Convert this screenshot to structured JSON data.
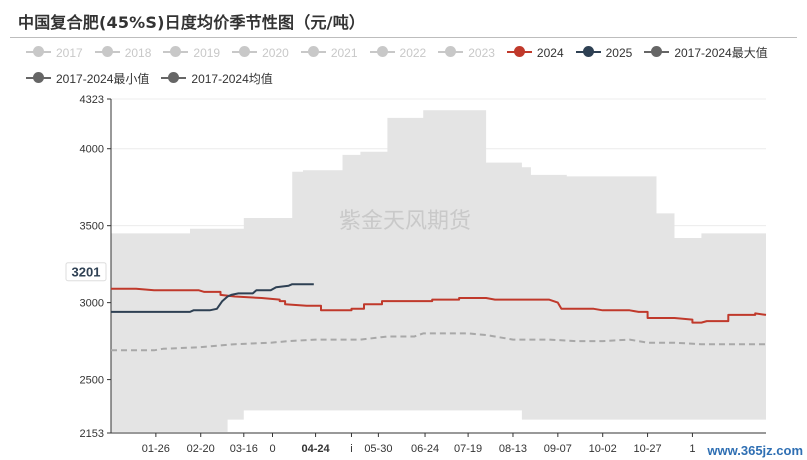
{
  "title": "中国复合肥(45%S)日度均价季节性图（元/吨）",
  "watermark": "紫金天风期货",
  "corner_text": "www.365jz.com",
  "legend": [
    {
      "label": "2017",
      "color": "#c8c8c8",
      "active": false
    },
    {
      "label": "2018",
      "color": "#c8c8c8",
      "active": false
    },
    {
      "label": "2019",
      "color": "#c8c8c8",
      "active": false
    },
    {
      "label": "2020",
      "color": "#c8c8c8",
      "active": false
    },
    {
      "label": "2021",
      "color": "#c8c8c8",
      "active": false
    },
    {
      "label": "2022",
      "color": "#c8c8c8",
      "active": false
    },
    {
      "label": "2023",
      "color": "#c8c8c8",
      "active": false
    },
    {
      "label": "2024",
      "color": "#c0392b",
      "active": true
    },
    {
      "label": "2025",
      "color": "#2e4053",
      "active": true
    },
    {
      "label": "2017-2024最大值",
      "color": "#666666",
      "active": true
    },
    {
      "label": "2017-2024最小值",
      "color": "#666666",
      "active": true
    },
    {
      "label": "2017-2024均值",
      "color": "#666666",
      "active": true
    }
  ],
  "chart_data": {
    "type": "line",
    "y_ticks": [
      {
        "value": 4323,
        "label": "4323"
      },
      {
        "value": 4000,
        "label": "4000"
      },
      {
        "value": 3500,
        "label": "3500"
      },
      {
        "value": 3000,
        "label": "3000"
      },
      {
        "value": 2500,
        "label": "2500"
      },
      {
        "value": 2153,
        "label": "2153"
      }
    ],
    "ylim": [
      2153,
      4323
    ],
    "xlim": [
      1,
      366
    ],
    "x_ticks": [
      {
        "day": 26,
        "label": "01-26",
        "bold": false
      },
      {
        "day": 51,
        "label": "02-20",
        "bold": false
      },
      {
        "day": 75,
        "label": "03-16",
        "bold": false
      },
      {
        "day": 91,
        "label": "0",
        "bold": false
      },
      {
        "day": 115,
        "label": "04-24",
        "bold": true
      },
      {
        "day": 135,
        "label": "i",
        "bold": false
      },
      {
        "day": 150,
        "label": "05-30",
        "bold": false
      },
      {
        "day": 176,
        "label": "06-24",
        "bold": false
      },
      {
        "day": 200,
        "label": "07-19",
        "bold": false
      },
      {
        "day": 225,
        "label": "08-13",
        "bold": false
      },
      {
        "day": 250,
        "label": "09-07",
        "bold": false
      },
      {
        "day": 275,
        "label": "10-02",
        "bold": false
      },
      {
        "day": 300,
        "label": "10-27",
        "bold": false
      },
      {
        "day": 325,
        "label": "1",
        "bold": false
      }
    ],
    "highlight_label": {
      "value": 3201,
      "label": "3201"
    },
    "range_band": {
      "name": "2017-2024最大值 / 2017-2024最小值",
      "color": "#e4e4e4",
      "max": [
        [
          1,
          3450
        ],
        [
          45,
          3450
        ],
        [
          45,
          3480
        ],
        [
          75,
          3480
        ],
        [
          75,
          3550
        ],
        [
          102,
          3550
        ],
        [
          102,
          3850
        ],
        [
          108,
          3850
        ],
        [
          108,
          3860
        ],
        [
          130,
          3860
        ],
        [
          130,
          3960
        ],
        [
          140,
          3960
        ],
        [
          140,
          3980
        ],
        [
          155,
          3980
        ],
        [
          155,
          4200
        ],
        [
          175,
          4200
        ],
        [
          175,
          4250
        ],
        [
          210,
          4250
        ],
        [
          210,
          3910
        ],
        [
          230,
          3910
        ],
        [
          230,
          3880
        ],
        [
          235,
          3880
        ],
        [
          235,
          3830
        ],
        [
          255,
          3830
        ],
        [
          255,
          3820
        ],
        [
          305,
          3820
        ],
        [
          305,
          3580
        ],
        [
          315,
          3580
        ],
        [
          315,
          3420
        ],
        [
          330,
          3420
        ],
        [
          330,
          3450
        ],
        [
          366,
          3450
        ]
      ],
      "min": [
        [
          1,
          2160
        ],
        [
          66,
          2160
        ],
        [
          66,
          2240
        ],
        [
          75,
          2240
        ],
        [
          75,
          2300
        ],
        [
          230,
          2300
        ],
        [
          230,
          2240
        ],
        [
          366,
          2240
        ]
      ]
    },
    "series": [
      {
        "name": "2024",
        "color": "#c0392b",
        "dashed": false,
        "values": [
          [
            1,
            3090
          ],
          [
            15,
            3090
          ],
          [
            20,
            3085
          ],
          [
            25,
            3080
          ],
          [
            50,
            3080
          ],
          [
            53,
            3070
          ],
          [
            62,
            3070
          ],
          [
            62,
            3050
          ],
          [
            70,
            3040
          ],
          [
            85,
            3030
          ],
          [
            95,
            3020
          ],
          [
            95,
            3010
          ],
          [
            98,
            3010
          ],
          [
            98,
            2990
          ],
          [
            110,
            2980
          ],
          [
            118,
            2980
          ],
          [
            118,
            2950
          ],
          [
            135,
            2950
          ],
          [
            135,
            2960
          ],
          [
            142,
            2960
          ],
          [
            142,
            2990
          ],
          [
            152,
            2990
          ],
          [
            152,
            3010
          ],
          [
            180,
            3010
          ],
          [
            180,
            3020
          ],
          [
            195,
            3020
          ],
          [
            195,
            3030
          ],
          [
            210,
            3030
          ],
          [
            215,
            3020
          ],
          [
            245,
            3020
          ],
          [
            250,
            3000
          ],
          [
            252,
            2960
          ],
          [
            270,
            2960
          ],
          [
            275,
            2950
          ],
          [
            290,
            2950
          ],
          [
            295,
            2940
          ],
          [
            300,
            2940
          ],
          [
            300,
            2900
          ],
          [
            315,
            2900
          ],
          [
            325,
            2890
          ],
          [
            325,
            2870
          ],
          [
            330,
            2870
          ],
          [
            333,
            2880
          ],
          [
            345,
            2880
          ],
          [
            345,
            2920
          ],
          [
            360,
            2920
          ],
          [
            360,
            2930
          ],
          [
            366,
            2920
          ]
        ]
      },
      {
        "name": "2025",
        "color": "#2e4053",
        "dashed": false,
        "values": [
          [
            1,
            2940
          ],
          [
            45,
            2940
          ],
          [
            47,
            2950
          ],
          [
            56,
            2950
          ],
          [
            60,
            2960
          ],
          [
            63,
            3010
          ],
          [
            66,
            3040
          ],
          [
            68,
            3050
          ],
          [
            72,
            3060
          ],
          [
            80,
            3060
          ],
          [
            82,
            3080
          ],
          [
            90,
            3080
          ],
          [
            93,
            3100
          ],
          [
            100,
            3110
          ],
          [
            102,
            3120
          ],
          [
            114,
            3120
          ]
        ]
      },
      {
        "name": "2017-2024均值",
        "color": "#a8a8a8",
        "dashed": true,
        "values": [
          [
            1,
            2690
          ],
          [
            25,
            2690
          ],
          [
            30,
            2700
          ],
          [
            50,
            2710
          ],
          [
            60,
            2720
          ],
          [
            70,
            2730
          ],
          [
            90,
            2740
          ],
          [
            100,
            2750
          ],
          [
            115,
            2760
          ],
          [
            140,
            2760
          ],
          [
            155,
            2780
          ],
          [
            170,
            2780
          ],
          [
            175,
            2800
          ],
          [
            200,
            2800
          ],
          [
            210,
            2790
          ],
          [
            225,
            2760
          ],
          [
            245,
            2760
          ],
          [
            260,
            2750
          ],
          [
            275,
            2750
          ],
          [
            290,
            2760
          ],
          [
            300,
            2740
          ],
          [
            315,
            2740
          ],
          [
            330,
            2730
          ],
          [
            366,
            2730
          ]
        ]
      }
    ]
  }
}
